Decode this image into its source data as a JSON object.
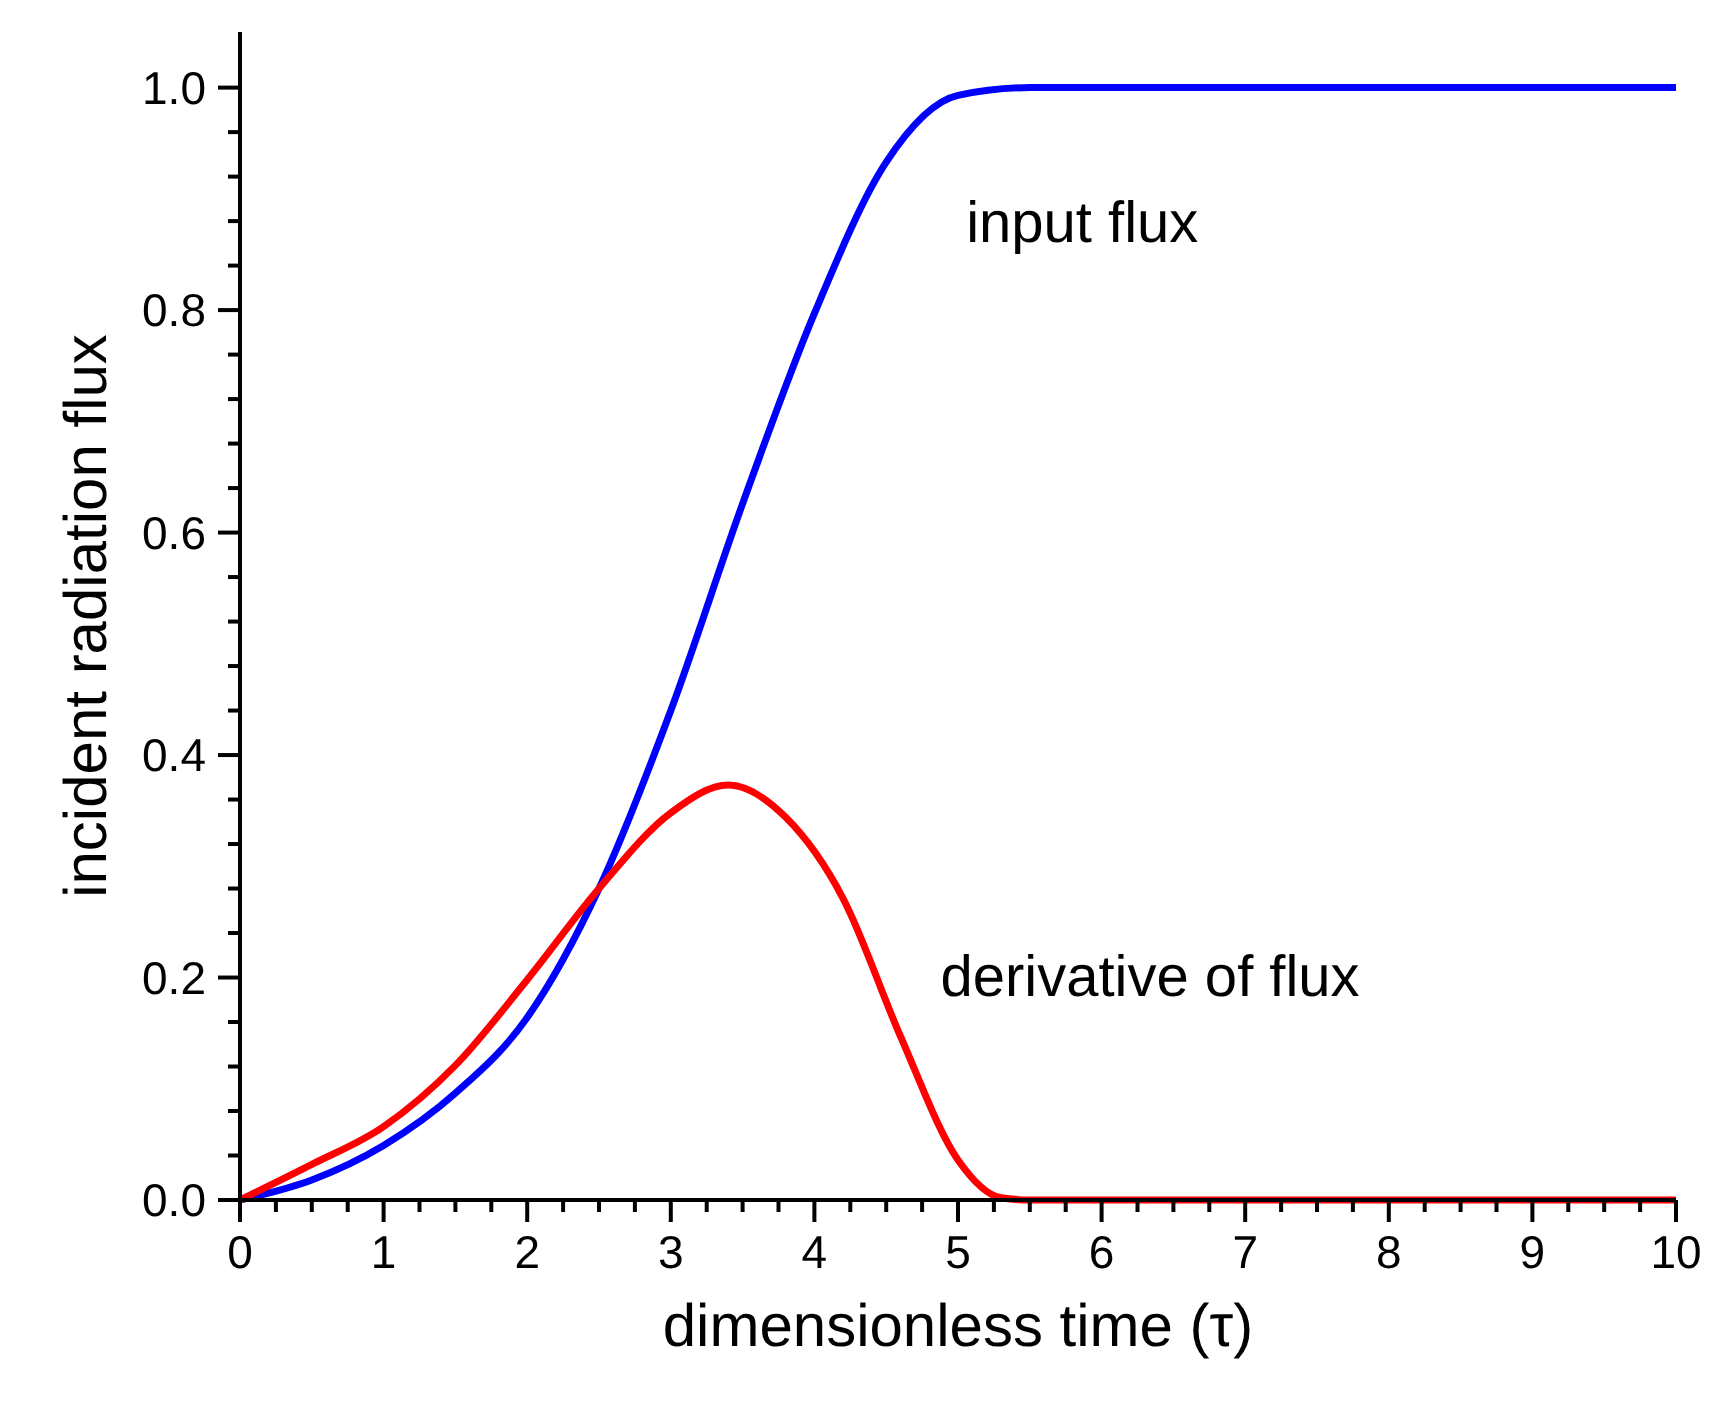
{
  "chart_data": {
    "type": "line",
    "xlabel": "dimensionless time (τ)",
    "ylabel": "incident radiation flux",
    "xlim": [
      0,
      10
    ],
    "xticks": [
      0,
      1,
      2,
      3,
      4,
      5,
      6,
      7,
      8,
      9,
      10
    ],
    "ylim": [
      0,
      1.05
    ],
    "yticks": [
      {
        "value": 0,
        "label": "0.0"
      },
      0.2,
      0.4,
      0.6,
      0.8,
      {
        "value": 1,
        "label": "1.0"
      }
    ],
    "grid": false,
    "line_style": "solid",
    "series": [
      {
        "name": "input flux",
        "color": "#0000ff",
        "x": [
          0,
          0.5,
          1,
          1.5,
          2,
          2.5,
          3,
          3.5,
          4,
          4.5,
          5,
          5.5,
          6,
          10
        ],
        "values": [
          0,
          0.018,
          0.049,
          0.096,
          0.164,
          0.28,
          0.44,
          0.626,
          0.797,
          0.933,
          0.993,
          1,
          1,
          1
        ]
      },
      {
        "name": "derivative of flux",
        "color": "#ff0000",
        "x": [
          0,
          0.5,
          1,
          1.5,
          2,
          2.5,
          3,
          3.4,
          3.8,
          4.2,
          4.6,
          5,
          5.3,
          5.5,
          10
        ],
        "values": [
          0,
          0.032,
          0.066,
          0.121,
          0.198,
          0.28,
          0.348,
          0.373,
          0.344,
          0.271,
          0.147,
          0.036,
          0.002,
          0,
          0
        ]
      }
    ]
  }
}
